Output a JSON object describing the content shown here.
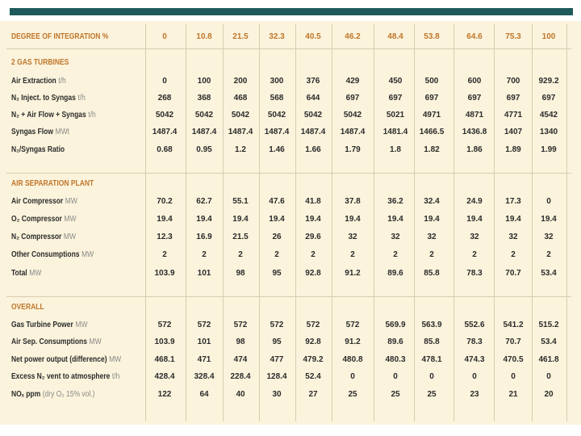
{
  "table": {
    "header": {
      "label": "DEGREE OF INTEGRATION %",
      "values": [
        "0",
        "10.8",
        "21.5",
        "32.3",
        "40.5",
        "46.2",
        "48.4",
        "53.8",
        "64.6",
        "75.3",
        "100"
      ]
    },
    "sections": [
      {
        "title": "2 GAS TURBINES",
        "rows": [
          {
            "label": "Air Extraction",
            "unit": "t/h",
            "values": [
              "0",
              "100",
              "200",
              "300",
              "376",
              "429",
              "450",
              "500",
              "600",
              "700",
              "929.2"
            ]
          },
          {
            "label": "N₂ Inject. to Syngas",
            "unit": "t/h",
            "values": [
              "268",
              "368",
              "468",
              "568",
              "644",
              "697",
              "697",
              "697",
              "697",
              "697",
              "697"
            ]
          },
          {
            "label": "N₂ + Air Flow + Syngas",
            "unit": "t/h",
            "values": [
              "5042",
              "5042",
              "5042",
              "5042",
              "5042",
              "5042",
              "5021",
              "4971",
              "4871",
              "4771",
              "4542"
            ]
          },
          {
            "label": "Syngas Flow",
            "unit": "MWt",
            "values": [
              "1487.4",
              "1487.4",
              "1487.4",
              "1487.4",
              "1487.4",
              "1487.4",
              "1481.4",
              "1466.5",
              "1436.8",
              "1407",
              "1340"
            ]
          },
          {
            "label": "N₂/Syngas Ratio",
            "unit": "",
            "values": [
              "0.68",
              "0.95",
              "1.2",
              "1.46",
              "1.66",
              "1.79",
              "1.8",
              "1.82",
              "1.86",
              "1.89",
              "1.99"
            ]
          }
        ]
      },
      {
        "title": "AIR SEPARATION PLANT",
        "rows": [
          {
            "label": "Air Compressor",
            "unit": "MW",
            "values": [
              "70.2",
              "62.7",
              "55.1",
              "47.6",
              "41.8",
              "37.8",
              "36.2",
              "32.4",
              "24.9",
              "17.3",
              "0"
            ]
          },
          {
            "label": "O₂ Compressor",
            "unit": "MW",
            "values": [
              "19.4",
              "19.4",
              "19.4",
              "19.4",
              "19.4",
              "19.4",
              "19.4",
              "19.4",
              "19.4",
              "19.4",
              "19.4"
            ]
          },
          {
            "label": "N₂ Compressor",
            "unit": "MW",
            "values": [
              "12.3",
              "16.9",
              "21.5",
              "26",
              "29.6",
              "32",
              "32",
              "32",
              "32",
              "32",
              "32"
            ]
          },
          {
            "label": "Other Consumptions",
            "unit": "MW",
            "values": [
              "2",
              "2",
              "2",
              "2",
              "2",
              "2",
              "2",
              "2",
              "2",
              "2",
              "2"
            ]
          },
          {
            "label": "Total",
            "unit": "MW",
            "values": [
              "103.9",
              "101",
              "98",
              "95",
              "92.8",
              "91.2",
              "89.6",
              "85.8",
              "78.3",
              "70.7",
              "53.4"
            ]
          }
        ]
      },
      {
        "title": "OVERALL",
        "rows": [
          {
            "label": "Gas Turbine Power",
            "unit": "MW",
            "values": [
              "572",
              "572",
              "572",
              "572",
              "572",
              "572",
              "569.9",
              "563.9",
              "552.6",
              "541.2",
              "515.2"
            ]
          },
          {
            "label": "Air Sep. Consumptions",
            "unit": "MW",
            "values": [
              "103.9",
              "101",
              "98",
              "95",
              "92.8",
              "91.2",
              "89.6",
              "85.8",
              "78.3",
              "70.7",
              "53.4"
            ]
          },
          {
            "label": "Net power output (difference)",
            "unit": "MW",
            "values": [
              "468.1",
              "471",
              "474",
              "477",
              "479.2",
              "480.8",
              "480.3",
              "478.1",
              "474.3",
              "470.5",
              "461.8"
            ]
          },
          {
            "label": "Excess N₂ vent to atmosphere",
            "unit": "t/h",
            "values": [
              "428.4",
              "328.4",
              "228.4",
              "128.4",
              "52.4",
              "0",
              "0",
              "0",
              "0",
              "0",
              "0"
            ]
          },
          {
            "label": "NOₓ ppm",
            "unit": "(dry O₂ 15% vol.)",
            "values": [
              "122",
              "64",
              "40",
              "30",
              "27",
              "25",
              "25",
              "25",
              "23",
              "21",
              "20"
            ]
          }
        ]
      }
    ]
  }
}
